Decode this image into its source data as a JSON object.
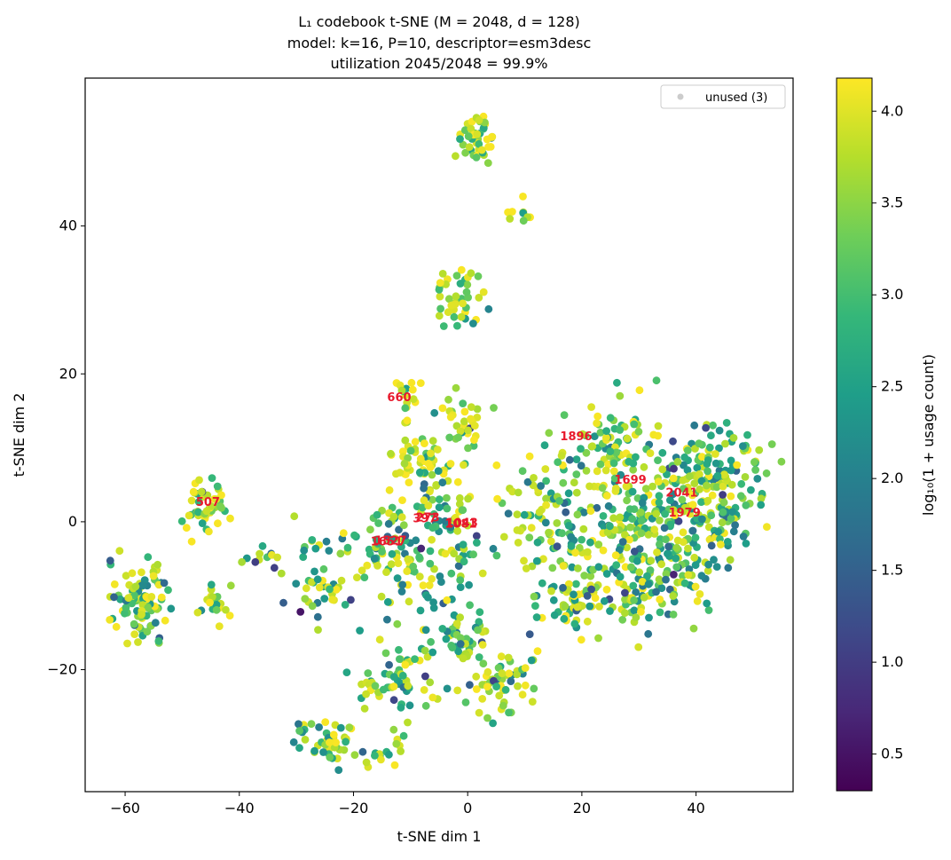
{
  "chart_data": {
    "type": "scatter",
    "title_lines": [
      "L₁ codebook t-SNE  (M = 2048, d = 128)",
      "model: k=16, P=10, descriptor=esm3desc",
      "utilization 2045/2048 = 99.9%"
    ],
    "xlabel": "t-SNE dim 1",
    "ylabel": "t-SNE dim 2",
    "xlim": [
      -67,
      57
    ],
    "ylim": [
      -36.5,
      60
    ],
    "xticks": [
      -60,
      -40,
      -20,
      0,
      20,
      40
    ],
    "yticks": [
      -20,
      0,
      20,
      40
    ],
    "xtick_labels": [
      "−60",
      "−40",
      "−20",
      "0",
      "20",
      "40"
    ],
    "ytick_labels": [
      "−20",
      "0",
      "20",
      "40"
    ],
    "grid": false,
    "legend": {
      "placement": "top-right",
      "entries": [
        {
          "label": "unused (3)",
          "color": "#cccccc"
        }
      ]
    },
    "colorbar": {
      "label": "log₁₀(1 + usage count)",
      "range": [
        0.3,
        4.18
      ],
      "ticks": [
        0.5,
        1.0,
        1.5,
        2.0,
        2.5,
        3.0,
        3.5,
        4.0
      ],
      "tick_labels": [
        "0.5",
        "1.0",
        "1.5",
        "2.0",
        "2.5",
        "3.0",
        "3.5",
        "4.0"
      ],
      "colormap": "viridis",
      "colormap_stops": [
        "#440154",
        "#482878",
        "#3e4989",
        "#31688e",
        "#26828e",
        "#1f9e89",
        "#35b779",
        "#6ece58",
        "#b5de2b",
        "#fde725"
      ]
    },
    "clusters": [
      {
        "x": 1.5,
        "y": 51.5,
        "sx": 1.5,
        "sy": 1.8,
        "n": 45,
        "usage_level": 3.7
      },
      {
        "x": 9.5,
        "y": 42.3,
        "sx": 1.6,
        "sy": 0.8,
        "n": 9,
        "usage_level": 3.6
      },
      {
        "x": -1.0,
        "y": 30.5,
        "sx": 2.3,
        "sy": 2.0,
        "n": 40,
        "usage_level": 3.3
      },
      {
        "x": -11.0,
        "y": 16.5,
        "sx": 1.3,
        "sy": 1.2,
        "n": 14,
        "usage_level": 3.6
      },
      {
        "x": -0.5,
        "y": 14.0,
        "sx": 1.8,
        "sy": 1.8,
        "n": 30,
        "usage_level": 3.4
      },
      {
        "x": -7.0,
        "y": 8.5,
        "sx": 3.2,
        "sy": 2.2,
        "n": 60,
        "usage_level": 3.7
      },
      {
        "x": -46.0,
        "y": 2.5,
        "sx": 2.4,
        "sy": 2.0,
        "n": 45,
        "usage_level": 3.2
      },
      {
        "x": -57.0,
        "y": -10.5,
        "sx": 2.3,
        "sy": 2.6,
        "n": 100,
        "usage_level": 3.0
      },
      {
        "x": -44.0,
        "y": -11.0,
        "sx": 1.3,
        "sy": 1.5,
        "n": 22,
        "usage_level": 3.4
      },
      {
        "x": -36.0,
        "y": -5.0,
        "sx": 1.6,
        "sy": 0.8,
        "n": 10,
        "usage_level": 2.5
      },
      {
        "x": -26.0,
        "y": -8.0,
        "sx": 3.0,
        "sy": 3.5,
        "n": 45,
        "usage_level": 2.5
      },
      {
        "x": -14.0,
        "y": -4.0,
        "sx": 3.5,
        "sy": 3.5,
        "n": 70,
        "usage_level": 3.0
      },
      {
        "x": -5.0,
        "y": -6.0,
        "sx": 5.0,
        "sy": 5.0,
        "n": 70,
        "usage_level": 2.4
      },
      {
        "x": -5.0,
        "y": 1.0,
        "sx": 3.0,
        "sy": 2.5,
        "n": 30,
        "usage_level": 2.6
      },
      {
        "x": -1.5,
        "y": -16.0,
        "sx": 3.0,
        "sy": 2.0,
        "n": 45,
        "usage_level": 3.0
      },
      {
        "x": -12.5,
        "y": -21.5,
        "sx": 3.5,
        "sy": 2.2,
        "n": 60,
        "usage_level": 3.1
      },
      {
        "x": 5.5,
        "y": -21.5,
        "sx": 3.2,
        "sy": 2.2,
        "n": 55,
        "usage_level": 3.3
      },
      {
        "x": -24.5,
        "y": -29.5,
        "sx": 1.8,
        "sy": 1.6,
        "n": 38,
        "usage_level": 3.3
      },
      {
        "x": -28.5,
        "y": -27.5,
        "sx": 1.2,
        "sy": 1.0,
        "n": 8,
        "usage_level": 2.5
      },
      {
        "x": -13.5,
        "y": -30.5,
        "sx": 1.3,
        "sy": 1.2,
        "n": 12,
        "usage_level": 3.4
      },
      {
        "x": -17.0,
        "y": -31.5,
        "sx": 1.0,
        "sy": 0.8,
        "n": 5,
        "usage_level": 2.8
      },
      {
        "x": 12.0,
        "y": 1.5,
        "sx": 4.0,
        "sy": 3.5,
        "n": 60,
        "usage_level": 3.0
      },
      {
        "x": 20.5,
        "y": -10.5,
        "sx": 3.8,
        "sy": 3.0,
        "n": 70,
        "usage_level": 3.3
      },
      {
        "x": 24.0,
        "y": 10.5,
        "sx": 4.5,
        "sy": 3.2,
        "n": 80,
        "usage_level": 3.1
      },
      {
        "x": 31.5,
        "y": 0.0,
        "sx": 5.0,
        "sy": 4.5,
        "n": 150,
        "usage_level": 2.9
      },
      {
        "x": 43.0,
        "y": 5.0,
        "sx": 4.5,
        "sy": 4.2,
        "n": 190,
        "usage_level": 2.8
      },
      {
        "x": 22.0,
        "y": -3.0,
        "sx": 6.0,
        "sy": 5.0,
        "n": 80,
        "usage_level": 2.5
      },
      {
        "x": 30.5,
        "y": -10.5,
        "sx": 3.0,
        "sy": 2.5,
        "n": 40,
        "usage_level": 2.8
      },
      {
        "x": 38.0,
        "y": -7.0,
        "sx": 3.5,
        "sy": 3.0,
        "n": 40,
        "usage_level": 2.5
      }
    ],
    "annotations": [
      {
        "label": "660",
        "x": -12.0,
        "y": 16.8
      },
      {
        "label": "507",
        "x": -45.5,
        "y": 2.6
      },
      {
        "label": "1896",
        "x": 19.0,
        "y": 11.5
      },
      {
        "label": "1699",
        "x": 28.5,
        "y": 5.6
      },
      {
        "label": "2041",
        "x": 37.5,
        "y": 3.9
      },
      {
        "label": "1979",
        "x": 38.0,
        "y": 1.2
      },
      {
        "label": "273",
        "x": -7.0,
        "y": 0.5
      },
      {
        "label": "397",
        "x": -7.5,
        "y": 0.4
      },
      {
        "label": "1043",
        "x": -1.0,
        "y": -0.2
      },
      {
        "label": "1081",
        "x": -1.2,
        "y": -0.3
      },
      {
        "label": "1527",
        "x": -13.5,
        "y": -2.6
      },
      {
        "label": "1651",
        "x": -14.2,
        "y": -2.7
      }
    ]
  }
}
